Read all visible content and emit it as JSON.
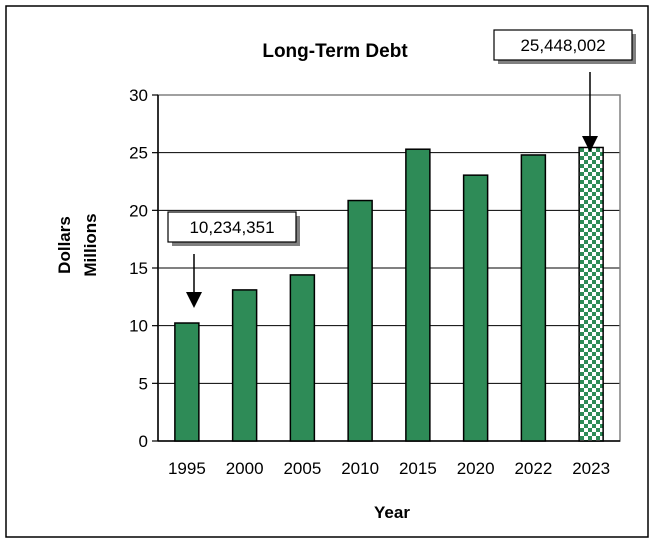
{
  "chart_data": {
    "type": "bar",
    "title": "Long-Term Debt",
    "xlabel": "Year",
    "ylabel": "Dollars",
    "ylabel_sub": "Millions",
    "categories": [
      "1995",
      "2000",
      "2005",
      "2010",
      "2015",
      "2020",
      "2022",
      "2023"
    ],
    "values": [
      10.23,
      13.1,
      14.4,
      20.85,
      25.3,
      23.05,
      24.8,
      25.45
    ],
    "ylim": [
      0,
      30
    ],
    "yticks": [
      0,
      5,
      10,
      15,
      20,
      25,
      30
    ],
    "grid": true,
    "legend": "none",
    "bar_color": "#2e8b57",
    "highlight_bar": {
      "category": "2023",
      "pattern": "checkered",
      "colors": [
        "#2e8b57",
        "#ffffff"
      ]
    },
    "annotations": [
      {
        "text": "10,234,351",
        "category": "1995"
      },
      {
        "text": "25,448,002",
        "category": "2023"
      }
    ]
  }
}
